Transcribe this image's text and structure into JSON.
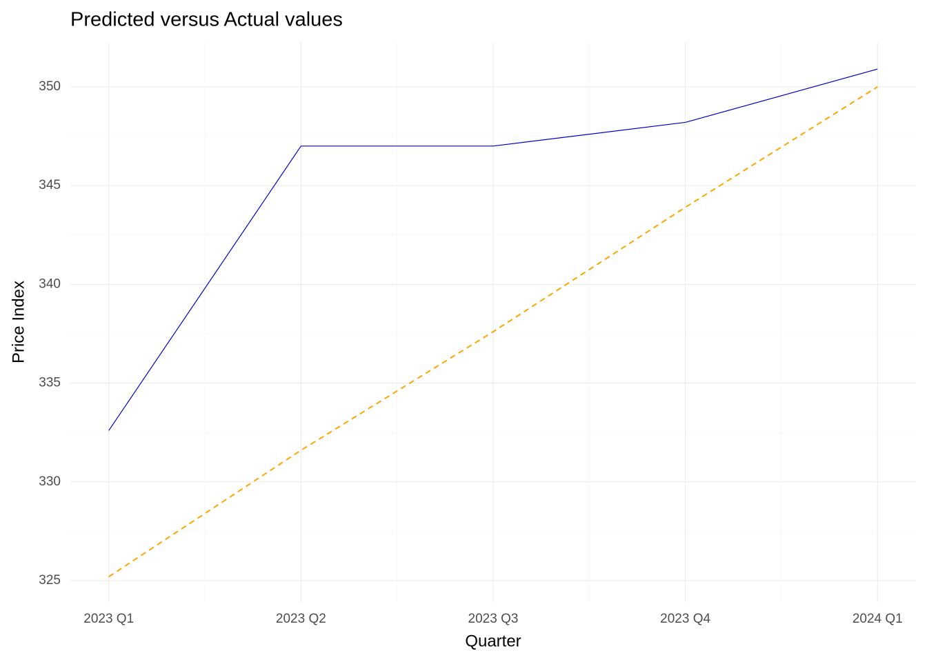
{
  "chart_data": {
    "type": "line",
    "title": "Predicted versus Actual values",
    "x_label": "Quarter",
    "y_label": "Price Index",
    "categories": [
      "2023 Q1",
      "2023 Q2",
      "2023 Q3",
      "2023 Q4",
      "2024 Q1"
    ],
    "series": [
      {
        "color": "#0000cd",
        "linestyle": "solid",
        "values": [
          332.6,
          347.0,
          347.0,
          348.2,
          350.9
        ]
      },
      {
        "color": "#ffa500",
        "linestyle": "dashed",
        "values": [
          325.2,
          331.6,
          337.6,
          343.9,
          350.0
        ]
      }
    ],
    "ylim": [
      323.92,
      352.23
    ],
    "yticks": [
      325,
      330,
      335,
      340,
      345,
      350
    ],
    "grid": true,
    "minor_grid": true
  }
}
